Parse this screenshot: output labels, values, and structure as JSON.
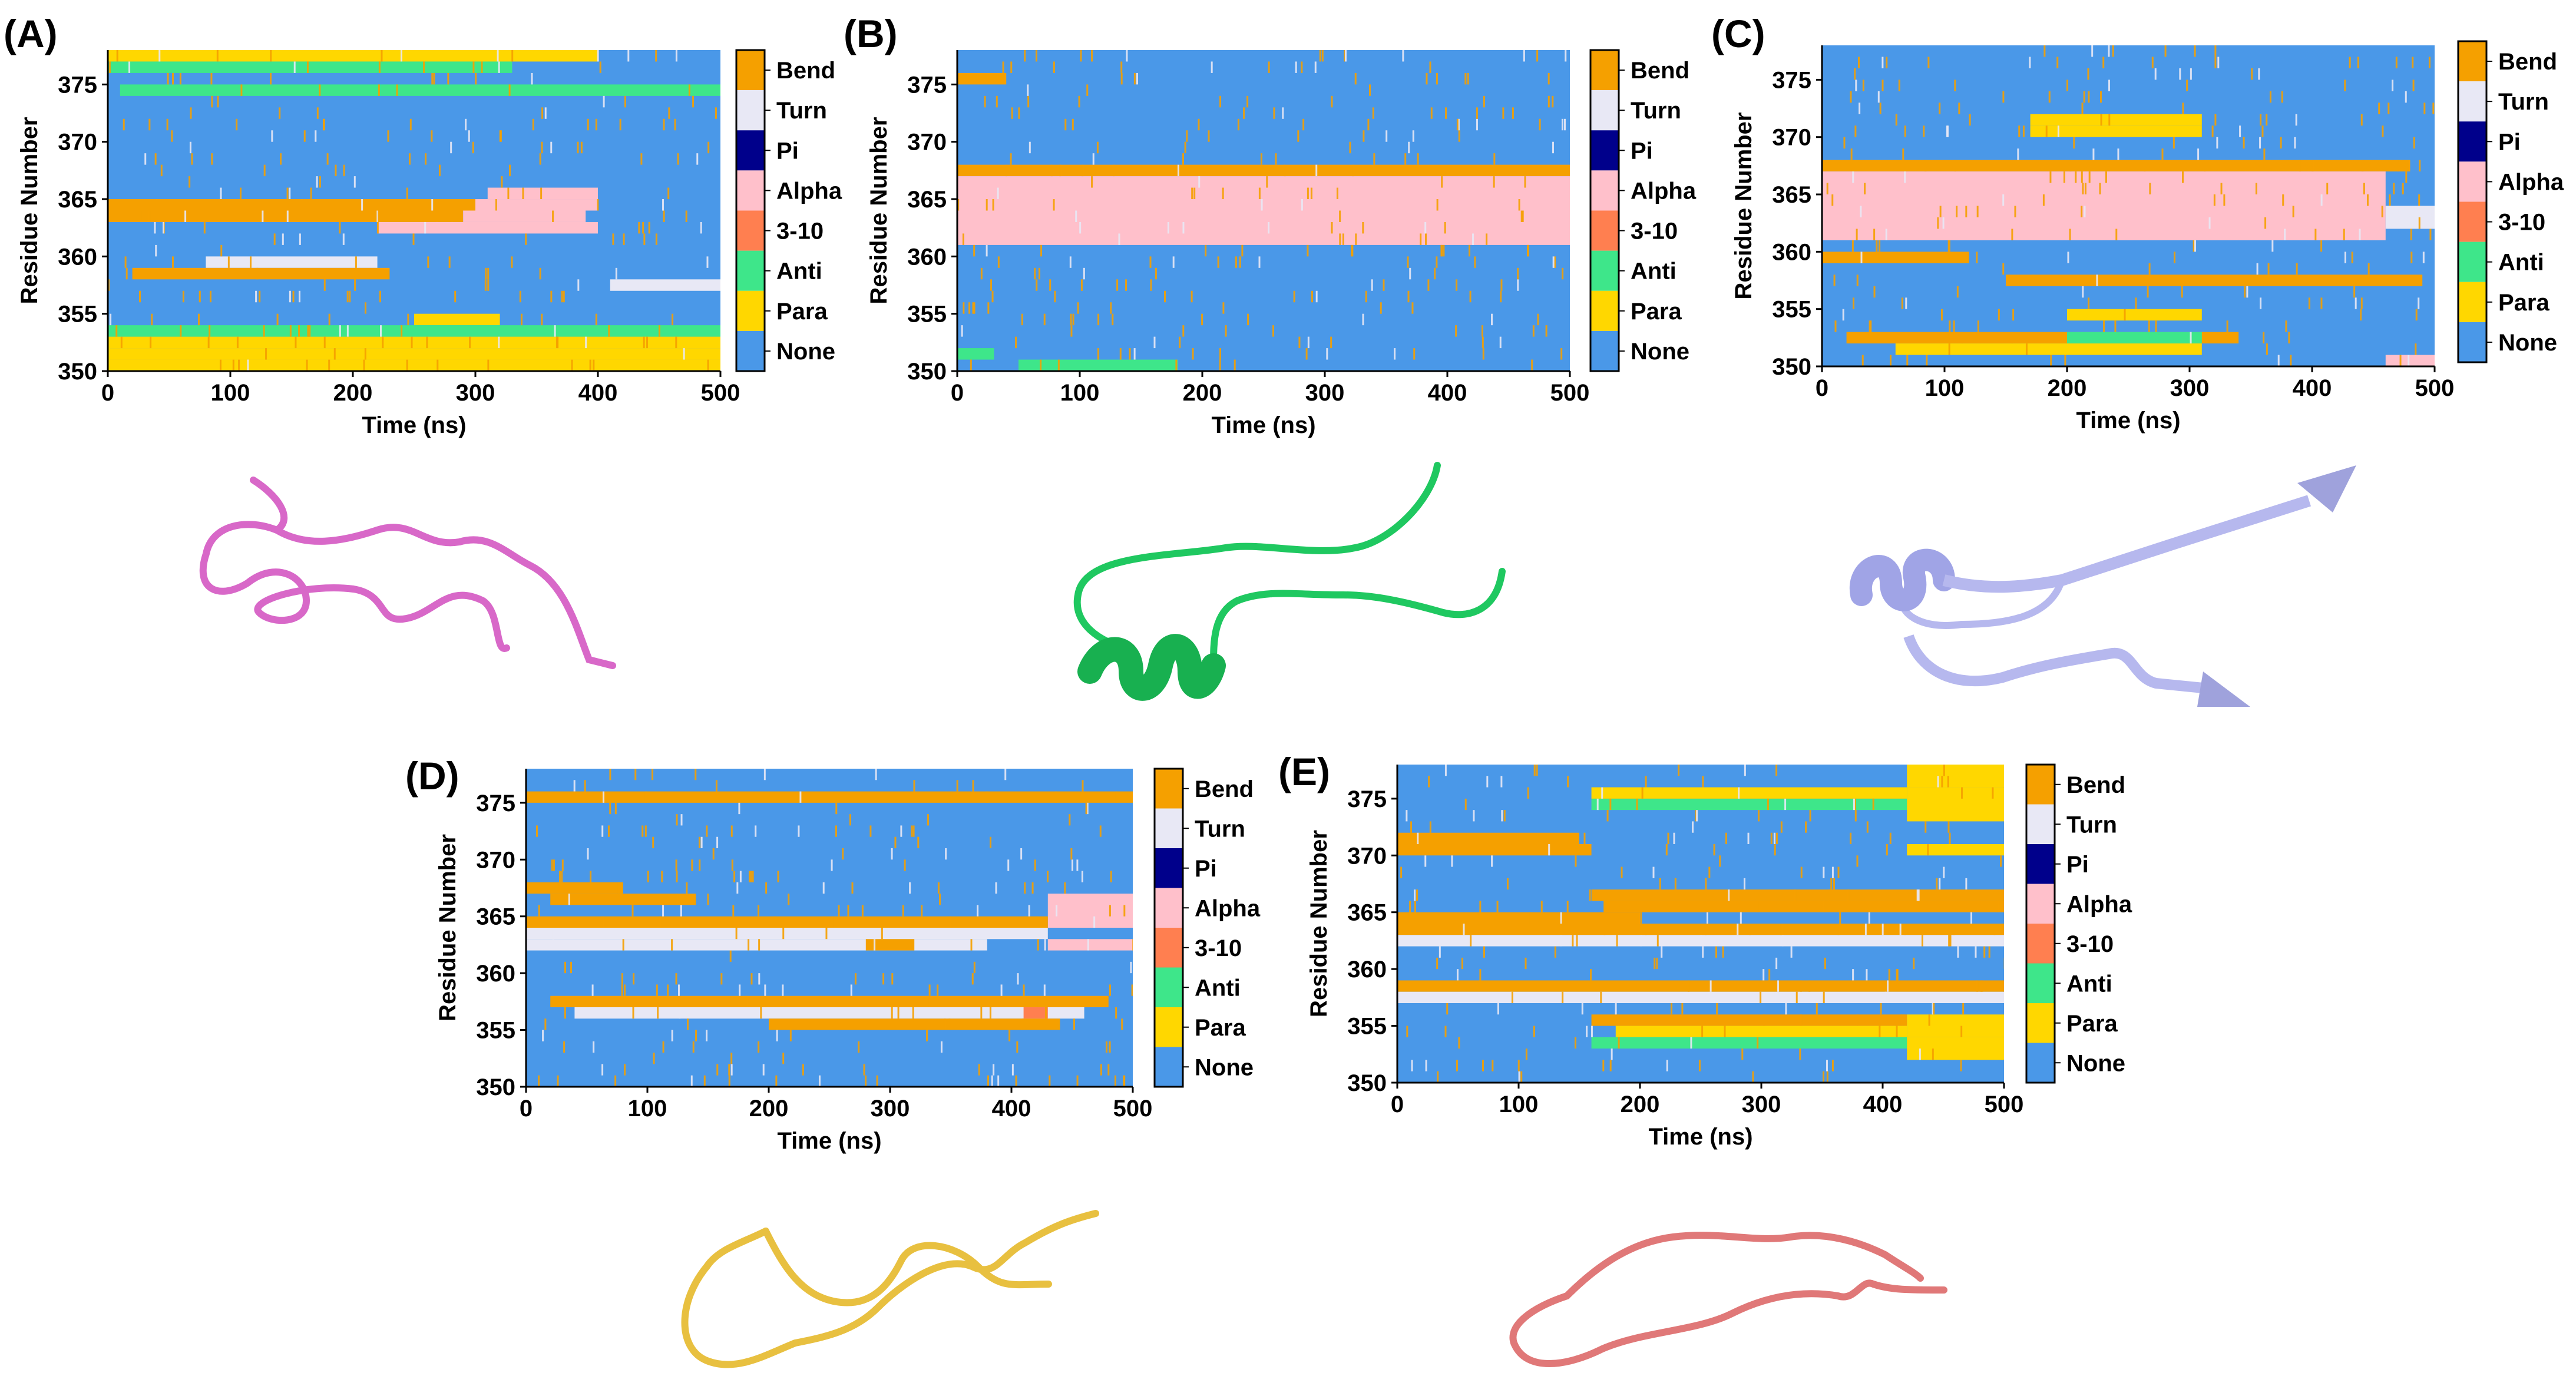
{
  "legend_categories": [
    "Bend",
    "Turn",
    "Pi",
    "Alpha",
    "3-10",
    "Anti",
    "Para",
    "None"
  ],
  "colors": {
    "Bend": "#f5a000",
    "Turn": "#e8e8f5",
    "Pi": "#00008b",
    "Alpha": "#ffc0cb",
    "3-10": "#ff7f50",
    "Anti": "#3ee68a",
    "Para": "#ffd700",
    "None": "#4a98e8"
  },
  "chart_data": [
    {
      "type": "heatmap",
      "panel": "(A)",
      "xlabel": "Time (ns)",
      "ylabel": "Residue Number",
      "xlim": [
        0,
        500
      ],
      "ylim": [
        350,
        378
      ],
      "xticks": [
        "0",
        "100",
        "200",
        "300",
        "400",
        "500"
      ],
      "yticks": [
        "350",
        "355",
        "360",
        "365",
        "370",
        "375"
      ],
      "legend": [
        "Bend",
        "Turn",
        "Pi",
        "Alpha",
        "3-10",
        "Anti",
        "Para",
        "None"
      ],
      "background": "None",
      "segments": [
        {
          "r0": 377,
          "r1": 378,
          "t0": 0,
          "t1": 400,
          "state": "Para"
        },
        {
          "r0": 376,
          "r1": 377,
          "t0": 0,
          "t1": 330,
          "state": "Anti"
        },
        {
          "r0": 374,
          "r1": 375,
          "t0": 10,
          "t1": 500,
          "state": "Anti"
        },
        {
          "r0": 365,
          "r1": 366,
          "t0": 310,
          "t1": 400,
          "state": "Alpha"
        },
        {
          "r0": 364,
          "r1": 365,
          "t0": 0,
          "t1": 300,
          "state": "Bend"
        },
        {
          "r0": 364,
          "r1": 365,
          "t0": 300,
          "t1": 400,
          "state": "Alpha"
        },
        {
          "r0": 363,
          "r1": 364,
          "t0": 0,
          "t1": 290,
          "state": "Bend"
        },
        {
          "r0": 363,
          "r1": 364,
          "t0": 290,
          "t1": 390,
          "state": "Alpha"
        },
        {
          "r0": 362,
          "r1": 363,
          "t0": 220,
          "t1": 400,
          "state": "Alpha"
        },
        {
          "r0": 359,
          "r1": 360,
          "t0": 80,
          "t1": 220,
          "state": "Turn"
        },
        {
          "r0": 358,
          "r1": 359,
          "t0": 20,
          "t1": 230,
          "state": "Bend"
        },
        {
          "r0": 357,
          "r1": 358,
          "t0": 410,
          "t1": 500,
          "state": "Turn"
        },
        {
          "r0": 354,
          "r1": 355,
          "t0": 250,
          "t1": 320,
          "state": "Para"
        },
        {
          "r0": 353,
          "r1": 354,
          "t0": 0,
          "t1": 500,
          "state": "Anti"
        },
        {
          "r0": 352,
          "r1": 353,
          "t0": 0,
          "t1": 500,
          "state": "Para"
        },
        {
          "r0": 351,
          "r1": 352,
          "t0": 0,
          "t1": 500,
          "state": "Para"
        },
        {
          "r0": 350,
          "r1": 351,
          "t0": 0,
          "t1": 500,
          "state": "Para"
        }
      ]
    },
    {
      "type": "heatmap",
      "panel": "(B)",
      "xlabel": "Time (ns)",
      "ylabel": "Residue Number",
      "xlim": [
        0,
        500
      ],
      "ylim": [
        350,
        378
      ],
      "xticks": [
        "0",
        "100",
        "200",
        "300",
        "400",
        "500"
      ],
      "yticks": [
        "350",
        "355",
        "360",
        "365",
        "370",
        "375"
      ],
      "legend": [
        "Bend",
        "Turn",
        "Pi",
        "Alpha",
        "3-10",
        "Anti",
        "Para",
        "None"
      ],
      "background": "None",
      "segments": [
        {
          "r0": 375,
          "r1": 376,
          "t0": 0,
          "t1": 40,
          "state": "Bend"
        },
        {
          "r0": 367,
          "r1": 368,
          "t0": 0,
          "t1": 500,
          "state": "Bend"
        },
        {
          "r0": 361,
          "r1": 367,
          "t0": 0,
          "t1": 500,
          "state": "Alpha"
        },
        {
          "r0": 351,
          "r1": 352,
          "t0": 0,
          "t1": 30,
          "state": "Anti"
        },
        {
          "r0": 350,
          "r1": 351,
          "t0": 50,
          "t1": 180,
          "state": "Anti"
        }
      ]
    },
    {
      "type": "heatmap",
      "panel": "(C)",
      "xlabel": "Time (ns)",
      "ylabel": "Residue Number",
      "xlim": [
        0,
        500
      ],
      "ylim": [
        350,
        378
      ],
      "xticks": [
        "0",
        "100",
        "200",
        "300",
        "400",
        "500"
      ],
      "yticks": [
        "350",
        "355",
        "360",
        "365",
        "370",
        "375"
      ],
      "legend": [
        "Bend",
        "Turn",
        "Pi",
        "Alpha",
        "3-10",
        "Anti",
        "Para",
        "None"
      ],
      "background": "None",
      "segments": [
        {
          "r0": 371,
          "r1": 372,
          "t0": 170,
          "t1": 310,
          "state": "Para"
        },
        {
          "r0": 370,
          "r1": 371,
          "t0": 170,
          "t1": 310,
          "state": "Para"
        },
        {
          "r0": 367,
          "r1": 368,
          "t0": 0,
          "t1": 480,
          "state": "Bend"
        },
        {
          "r0": 361,
          "r1": 367,
          "t0": 0,
          "t1": 460,
          "state": "Alpha"
        },
        {
          "r0": 362,
          "r1": 364,
          "t0": 460,
          "t1": 500,
          "state": "Turn"
        },
        {
          "r0": 359,
          "r1": 360,
          "t0": 0,
          "t1": 120,
          "state": "Bend"
        },
        {
          "r0": 357,
          "r1": 358,
          "t0": 150,
          "t1": 490,
          "state": "Bend"
        },
        {
          "r0": 354,
          "r1": 355,
          "t0": 200,
          "t1": 310,
          "state": "Para"
        },
        {
          "r0": 352,
          "r1": 353,
          "t0": 20,
          "t1": 340,
          "state": "Bend"
        },
        {
          "r0": 352,
          "r1": 353,
          "t0": 200,
          "t1": 310,
          "state": "Anti"
        },
        {
          "r0": 351,
          "r1": 352,
          "t0": 60,
          "t1": 310,
          "state": "Para"
        },
        {
          "r0": 350,
          "r1": 351,
          "t0": 460,
          "t1": 500,
          "state": "Alpha"
        }
      ]
    },
    {
      "type": "heatmap",
      "panel": "(D)",
      "xlabel": "Time (ns)",
      "ylabel": "Residue Number",
      "xlim": [
        0,
        500
      ],
      "ylim": [
        350,
        378
      ],
      "xticks": [
        "0",
        "100",
        "200",
        "300",
        "400",
        "500"
      ],
      "yticks": [
        "350",
        "355",
        "360",
        "365",
        "370",
        "375"
      ],
      "legend": [
        "Bend",
        "Turn",
        "Pi",
        "Alpha",
        "3-10",
        "Anti",
        "Para",
        "None"
      ],
      "background": "None",
      "segments": [
        {
          "r0": 375,
          "r1": 376,
          "t0": 0,
          "t1": 500,
          "state": "Bend"
        },
        {
          "r0": 367,
          "r1": 368,
          "t0": 0,
          "t1": 80,
          "state": "Bend"
        },
        {
          "r0": 366,
          "r1": 367,
          "t0": 20,
          "t1": 140,
          "state": "Bend"
        },
        {
          "r0": 364,
          "r1": 367,
          "t0": 430,
          "t1": 500,
          "state": "Alpha"
        },
        {
          "r0": 364,
          "r1": 365,
          "t0": 0,
          "t1": 430,
          "state": "Bend"
        },
        {
          "r0": 363,
          "r1": 364,
          "t0": 0,
          "t1": 430,
          "state": "Turn"
        },
        {
          "r0": 362,
          "r1": 363,
          "t0": 0,
          "t1": 380,
          "state": "Turn"
        },
        {
          "r0": 362,
          "r1": 363,
          "t0": 430,
          "t1": 500,
          "state": "Alpha"
        },
        {
          "r0": 362,
          "r1": 363,
          "t0": 280,
          "t1": 320,
          "state": "Bend"
        },
        {
          "r0": 357,
          "r1": 358,
          "t0": 20,
          "t1": 480,
          "state": "Bend"
        },
        {
          "r0": 356,
          "r1": 357,
          "t0": 40,
          "t1": 460,
          "state": "Turn"
        },
        {
          "r0": 356,
          "r1": 357,
          "t0": 410,
          "t1": 430,
          "state": "3-10"
        },
        {
          "r0": 355,
          "r1": 356,
          "t0": 200,
          "t1": 440,
          "state": "Bend"
        }
      ]
    },
    {
      "type": "heatmap",
      "panel": "(E)",
      "xlabel": "Time (ns)",
      "ylabel": "Residue Number",
      "xlim": [
        0,
        500
      ],
      "ylim": [
        350,
        378
      ],
      "xticks": [
        "0",
        "100",
        "200",
        "300",
        "400",
        "500"
      ],
      "yticks": [
        "350",
        "355",
        "360",
        "365",
        "370",
        "375"
      ],
      "legend": [
        "Bend",
        "Turn",
        "Pi",
        "Alpha",
        "3-10",
        "Anti",
        "Para",
        "None"
      ],
      "background": "None",
      "segments": [
        {
          "r0": 376,
          "r1": 378,
          "t0": 420,
          "t1": 500,
          "state": "Para"
        },
        {
          "r0": 374,
          "r1": 375,
          "t0": 160,
          "t1": 420,
          "state": "Anti"
        },
        {
          "r0": 373,
          "r1": 376,
          "t0": 420,
          "t1": 500,
          "state": "Para"
        },
        {
          "r0": 375,
          "r1": 376,
          "t0": 160,
          "t1": 420,
          "state": "Para"
        },
        {
          "r0": 371,
          "r1": 372,
          "t0": 0,
          "t1": 150,
          "state": "Bend"
        },
        {
          "r0": 370,
          "r1": 371,
          "t0": 0,
          "t1": 160,
          "state": "Bend"
        },
        {
          "r0": 370,
          "r1": 371,
          "t0": 420,
          "t1": 500,
          "state": "Para"
        },
        {
          "r0": 366,
          "r1": 367,
          "t0": 160,
          "t1": 500,
          "state": "Bend"
        },
        {
          "r0": 365,
          "r1": 366,
          "t0": 170,
          "t1": 500,
          "state": "Bend"
        },
        {
          "r0": 364,
          "r1": 365,
          "t0": 0,
          "t1": 200,
          "state": "Bend"
        },
        {
          "r0": 363,
          "r1": 364,
          "t0": 0,
          "t1": 500,
          "state": "Bend"
        },
        {
          "r0": 362,
          "r1": 363,
          "t0": 0,
          "t1": 500,
          "state": "Turn"
        },
        {
          "r0": 358,
          "r1": 359,
          "t0": 0,
          "t1": 500,
          "state": "Bend"
        },
        {
          "r0": 357,
          "r1": 358,
          "t0": 0,
          "t1": 500,
          "state": "Turn"
        },
        {
          "r0": 355,
          "r1": 356,
          "t0": 160,
          "t1": 420,
          "state": "Bend"
        },
        {
          "r0": 354,
          "r1": 355,
          "t0": 180,
          "t1": 420,
          "state": "Para"
        },
        {
          "r0": 354,
          "r1": 356,
          "t0": 420,
          "t1": 500,
          "state": "Para"
        },
        {
          "r0": 353,
          "r1": 354,
          "t0": 160,
          "t1": 420,
          "state": "Anti"
        },
        {
          "r0": 352,
          "r1": 354,
          "t0": 420,
          "t1": 500,
          "state": "Para"
        }
      ]
    }
  ],
  "structures": [
    {
      "panel": "(A)",
      "color": "#d868c8",
      "kind": "coil"
    },
    {
      "panel": "(B)",
      "color": "#1fc860",
      "kind": "helix-coil"
    },
    {
      "panel": "(C)",
      "color": "#b6b8ee",
      "kind": "helix-strand"
    },
    {
      "panel": "(D)",
      "color": "#e8c040",
      "kind": "coil"
    },
    {
      "panel": "(E)",
      "color": "#e07878",
      "kind": "coil"
    }
  ]
}
